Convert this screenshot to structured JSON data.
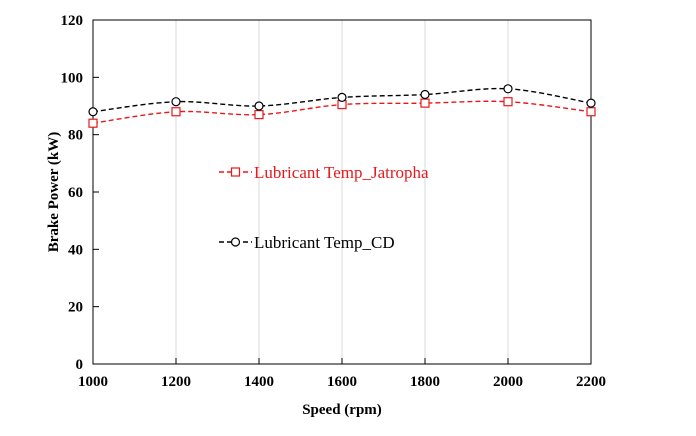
{
  "chart_data": {
    "type": "line",
    "title": "",
    "xlabel": "Speed (rpm)",
    "ylabel": "Brake Power (kW)",
    "xlim": [
      1000,
      2200
    ],
    "ylim": [
      0,
      120
    ],
    "x_ticks": [
      1000,
      1200,
      1400,
      1600,
      1800,
      2000,
      2200
    ],
    "y_ticks": [
      0,
      20,
      40,
      60,
      80,
      100,
      120
    ],
    "grid": "vertical",
    "legend_position": "center-left",
    "x": [
      1000,
      1200,
      1400,
      1600,
      1800,
      2000,
      2200
    ],
    "series": [
      {
        "name": "Lubricant Temp_Jatropha",
        "values": [
          84,
          88,
          87,
          90.5,
          91,
          91.5,
          88
        ],
        "color": "#e8191c",
        "marker": "square",
        "line_style": "dashed"
      },
      {
        "name": "Lubricant Temp_CD",
        "values": [
          88,
          91.5,
          90,
          93,
          94,
          96,
          91
        ],
        "color": "#000000",
        "marker": "circle",
        "line_style": "dashed"
      }
    ]
  }
}
